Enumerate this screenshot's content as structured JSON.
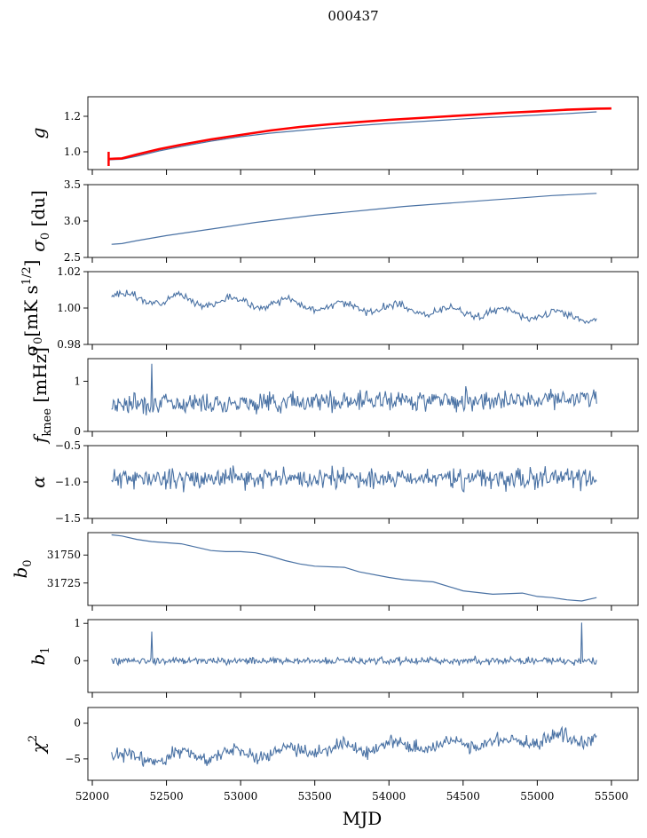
{
  "chart_data": {
    "type": "line",
    "title": "000437",
    "xlabel": "MJD",
    "xlim": [
      51970,
      55680
    ],
    "xticks": [
      52000,
      52500,
      53000,
      53500,
      54000,
      54500,
      55000,
      55500
    ],
    "series_color": "#4a72a4",
    "overlay_color": "#ff0000",
    "panels": [
      {
        "id": "g",
        "ylabel_main": "g",
        "ylabel_sub": "",
        "ylabel_sup": "",
        "ylabel_unit": "",
        "ylim": [
          0.9,
          1.31
        ],
        "yticks": [
          1.0,
          1.2
        ],
        "yticklabels": [
          "1.0",
          "1.2"
        ],
        "series": [
          {
            "name": "g",
            "x": [
              52110,
              52200,
              52300,
              52450,
              52600,
              52800,
              53000,
              53200,
              53400,
              53600,
              53800,
              54000,
              54200,
              54400,
              54600,
              54800,
              55000,
              55200,
              55400
            ],
            "y": [
              0.955,
              0.958,
              0.975,
              1.005,
              1.03,
              1.06,
              1.085,
              1.105,
              1.12,
              1.135,
              1.148,
              1.16,
              1.17,
              1.18,
              1.19,
              1.198,
              1.207,
              1.215,
              1.225
            ]
          },
          {
            "name": "g-fit",
            "x": [
              52110,
              52200,
              52300,
              52450,
              52600,
              52800,
              53000,
              53200,
              53400,
              53600,
              53800,
              54000,
              54200,
              54400,
              54600,
              54800,
              55000,
              55200,
              55400,
              55500
            ],
            "y": [
              0.96,
              0.963,
              0.985,
              1.015,
              1.04,
              1.07,
              1.095,
              1.12,
              1.14,
              1.155,
              1.168,
              1.18,
              1.19,
              1.2,
              1.21,
              1.22,
              1.228,
              1.237,
              1.243,
              1.244
            ]
          }
        ]
      },
      {
        "id": "sigma0_du",
        "ylabel_main": "σ",
        "ylabel_sub": "0",
        "ylabel_sup": "",
        "ylabel_unit": " [du]",
        "ylim": [
          2.5,
          3.5
        ],
        "yticks": [
          2.5,
          3.0,
          3.5
        ],
        "yticklabels": [
          "2.5",
          "3.0",
          "3.5"
        ],
        "series": [
          {
            "name": "sigma0",
            "x": [
              52130,
              52200,
              52300,
              52500,
              52700,
              52900,
              53100,
              53300,
              53500,
              53700,
              53900,
              54100,
              54300,
              54500,
              54700,
              54900,
              55100,
              55300,
              55400
            ],
            "y": [
              2.68,
              2.69,
              2.73,
              2.8,
              2.86,
              2.92,
              2.98,
              3.03,
              3.08,
              3.12,
              3.16,
              3.2,
              3.23,
              3.26,
              3.29,
              3.32,
              3.35,
              3.37,
              3.38
            ]
          }
        ]
      },
      {
        "id": "sigma0_mk",
        "ylabel_main": "σ",
        "ylabel_sub": "0",
        "ylabel_sup": "1/2",
        "ylabel_unit": "[mK s",
        "ylim": [
          0.98,
          1.02
        ],
        "yticks": [
          0.98,
          1.0,
          1.02
        ],
        "yticklabels": [
          "0.98",
          "1.00",
          "1.02"
        ],
        "noise": {
          "x0": 52130,
          "x1": 55400,
          "n": 420,
          "trend": [
            1.006,
            0.995
          ],
          "wave_amp": 0.0025,
          "wave_period": 365,
          "noise": 0.0014,
          "seed": 3
        }
      },
      {
        "id": "fknee",
        "ylabel_main": "f",
        "ylabel_sub": "knee",
        "ylabel_sup": "",
        "ylabel_unit": " [mHz]",
        "ylim": [
          0,
          1.45
        ],
        "yticks": [
          0,
          1
        ],
        "yticklabels": [
          "0",
          "1"
        ],
        "noise": {
          "x0": 52130,
          "x1": 55400,
          "n": 520,
          "trend": [
            0.55,
            0.66
          ],
          "wave_amp": 0.0,
          "wave_period": 365,
          "noise": 0.14,
          "seed": 7,
          "spike": {
            "x": 52400,
            "y": 1.35
          }
        }
      },
      {
        "id": "alpha",
        "ylabel_main": "α",
        "ylabel_sub": "",
        "ylabel_sup": "",
        "ylabel_unit": "",
        "ylim": [
          -1.5,
          -0.5
        ],
        "yticks": [
          -1.5,
          -1.0,
          -0.5
        ],
        "yticklabels": [
          "−1.5",
          "−1.0",
          "−0.5"
        ],
        "noise": {
          "x0": 52130,
          "x1": 55400,
          "n": 520,
          "trend": [
            -0.95,
            -0.95
          ],
          "wave_amp": 0.0,
          "wave_period": 365,
          "noise": 0.1,
          "seed": 11
        }
      },
      {
        "id": "b0",
        "ylabel_main": "b",
        "ylabel_sub": "0",
        "ylabel_sup": "",
        "ylabel_unit": "",
        "ylim": [
          31705,
          31770
        ],
        "yticks": [
          31725,
          31750
        ],
        "yticklabels": [
          "31725",
          "31750"
        ],
        "series": [
          {
            "name": "b0",
            "x": [
              52130,
              52200,
              52300,
              52400,
              52600,
              52800,
              52900,
              53000,
              53100,
              53200,
              53300,
              53400,
              53500,
              53700,
              53800,
              54000,
              54100,
              54300,
              54500,
              54700,
              54900,
              55000,
              55100,
              55200,
              55300,
              55400
            ],
            "y": [
              31768,
              31767,
              31764,
              31762,
              31760,
              31754,
              31753,
              31753,
              31752,
              31749,
              31745,
              31742,
              31740,
              31739,
              31735,
              31730,
              31728,
              31726,
              31718,
              31715,
              31716,
              31713,
              31712,
              31710,
              31709,
              31712
            ]
          }
        ]
      },
      {
        "id": "b1",
        "ylabel_main": "b",
        "ylabel_sub": "1",
        "ylabel_sup": "",
        "ylabel_unit": "",
        "ylim": [
          -0.85,
          1.1
        ],
        "yticks": [
          0,
          1
        ],
        "yticklabels": [
          "0",
          "1"
        ],
        "noise": {
          "x0": 52130,
          "x1": 55400,
          "n": 520,
          "trend": [
            0.0,
            0.0
          ],
          "wave_amp": 0.0,
          "wave_period": 365,
          "noise": 0.07,
          "seed": 19,
          "spike": {
            "x": 52400,
            "y": 0.78
          },
          "spike2": {
            "x": 55300,
            "y": 1.02
          }
        }
      },
      {
        "id": "chi2",
        "ylabel_main": "χ",
        "ylabel_sub": "",
        "ylabel_sup": "2",
        "ylabel_unit": "",
        "ylim": [
          -8,
          2.2
        ],
        "yticks": [
          -5,
          0
        ],
        "yticklabels": [
          "−5",
          "0"
        ],
        "noise": {
          "x0": 52130,
          "x1": 55400,
          "n": 520,
          "trend": [
            -5.0,
            -2.0
          ],
          "wave_amp": 0.6,
          "wave_period": 365,
          "noise": 0.7,
          "seed": 23
        }
      }
    ]
  }
}
